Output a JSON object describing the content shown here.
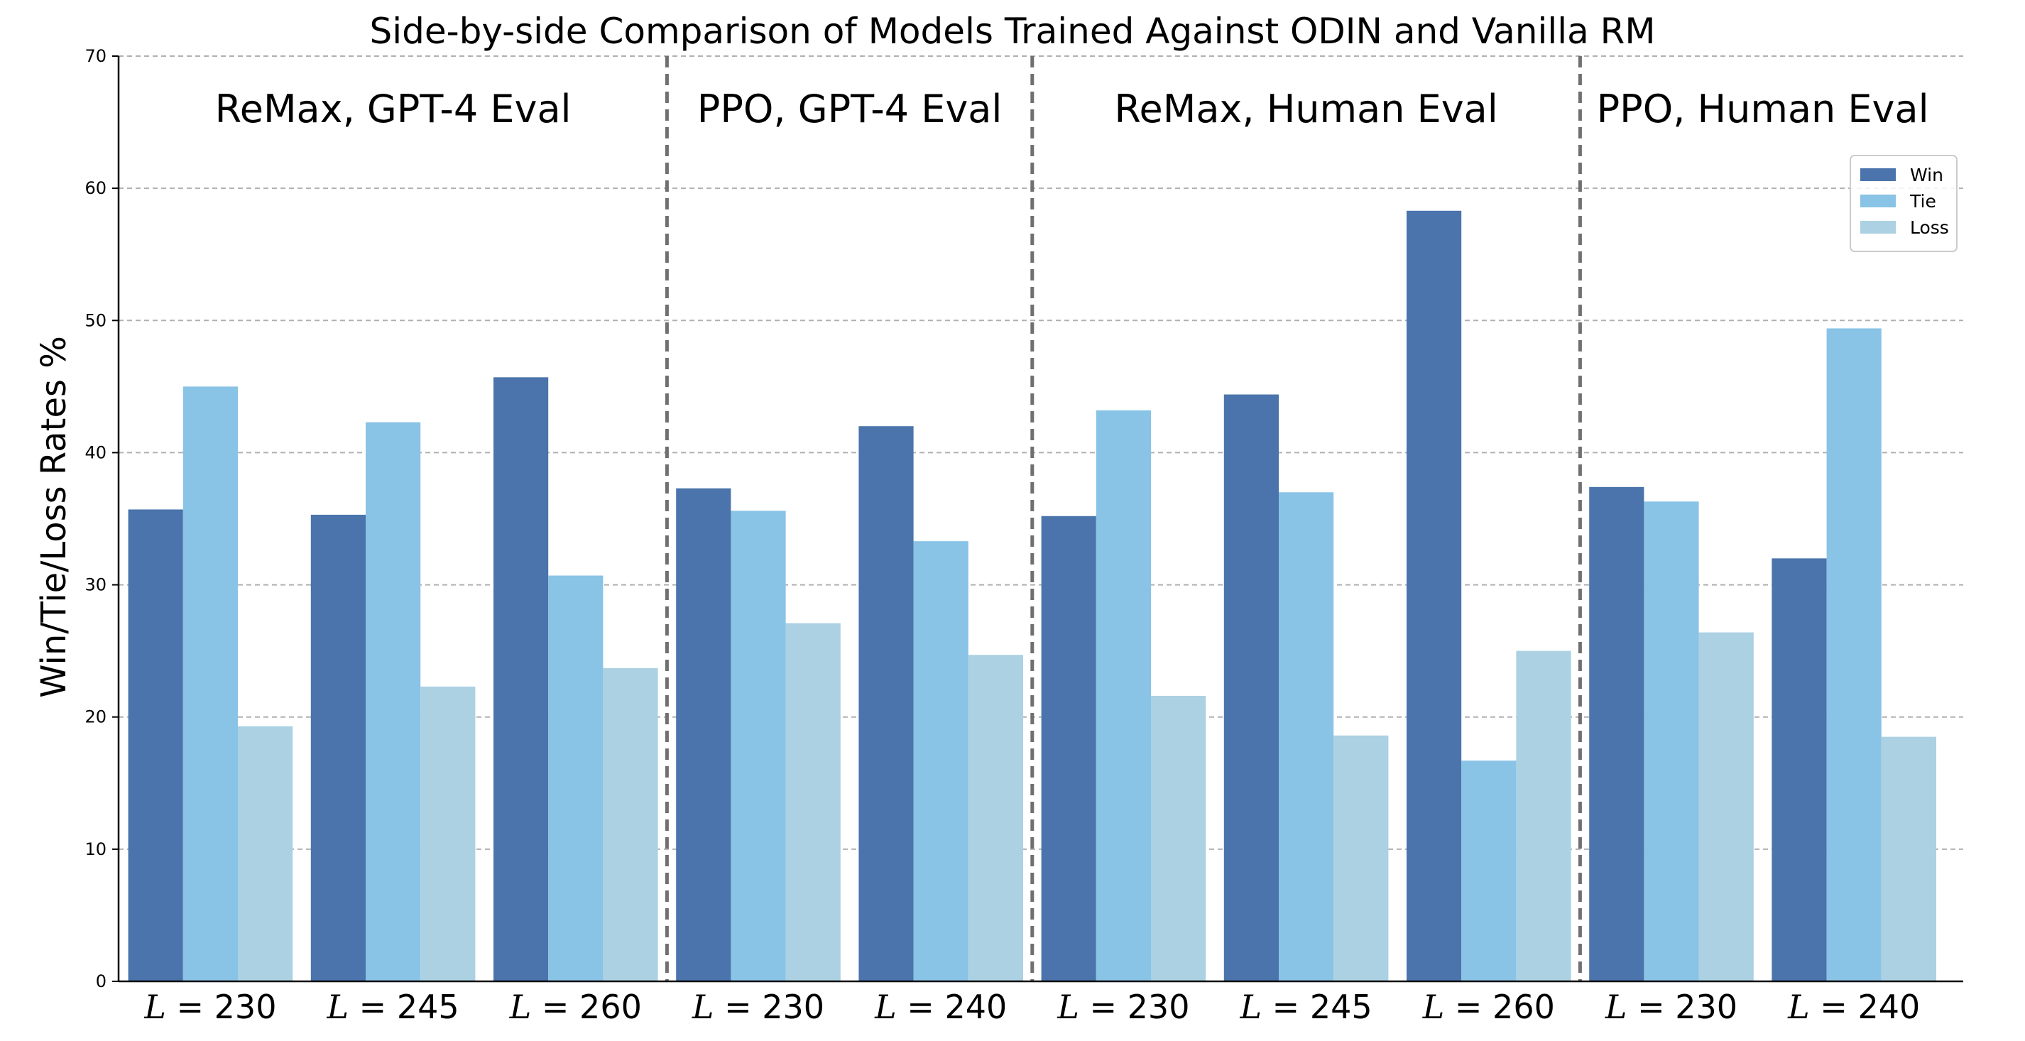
{
  "chart_data": {
    "type": "bar",
    "title": "Side-by-side Comparison of Models Trained Against ODIN and Vanilla RM",
    "xlabel": "",
    "ylabel": "Win/Tie/Loss Rates %",
    "ylim": [
      0,
      70
    ],
    "yticks": [
      "0",
      "10",
      "20",
      "30",
      "40",
      "50",
      "60",
      "70"
    ],
    "grid": true,
    "legend_position": "top-right",
    "sections": [
      {
        "label": "ReMax, GPT-4 Eval",
        "start": 0,
        "end": 3
      },
      {
        "label": "PPO, GPT-4 Eval",
        "start": 3,
        "end": 5
      },
      {
        "label": "ReMax, Human Eval",
        "start": 5,
        "end": 8
      },
      {
        "label": "PPO, Human Eval",
        "start": 8,
        "end": 10
      }
    ],
    "categories": [
      "L = 230",
      "L = 245",
      "L = 260",
      "L = 230",
      "L = 240",
      "L = 230",
      "L = 245",
      "L = 260",
      "L = 230",
      "L = 240"
    ],
    "category_parts": [
      {
        "var": "L",
        "rest": " = 230"
      },
      {
        "var": "L",
        "rest": " = 245"
      },
      {
        "var": "L",
        "rest": " = 260"
      },
      {
        "var": "L",
        "rest": " = 230"
      },
      {
        "var": "L",
        "rest": " = 240"
      },
      {
        "var": "L",
        "rest": " = 230"
      },
      {
        "var": "L",
        "rest": " = 245"
      },
      {
        "var": "L",
        "rest": " = 260"
      },
      {
        "var": "L",
        "rest": " = 230"
      },
      {
        "var": "L",
        "rest": " = 240"
      }
    ],
    "series": [
      {
        "name": "Win",
        "color": "#4a74ab",
        "values": [
          35.7,
          35.3,
          45.7,
          37.3,
          42.0,
          35.2,
          44.4,
          58.3,
          37.4,
          32.0
        ]
      },
      {
        "name": "Tie",
        "color": "#89c3e6",
        "values": [
          45.0,
          42.3,
          30.7,
          35.6,
          33.3,
          43.2,
          37.0,
          16.7,
          36.3,
          49.4
        ]
      },
      {
        "name": "Loss",
        "color": "#abd1e3",
        "values": [
          19.3,
          22.3,
          23.7,
          27.1,
          24.7,
          21.6,
          18.6,
          25.0,
          26.4,
          18.5
        ]
      }
    ]
  }
}
